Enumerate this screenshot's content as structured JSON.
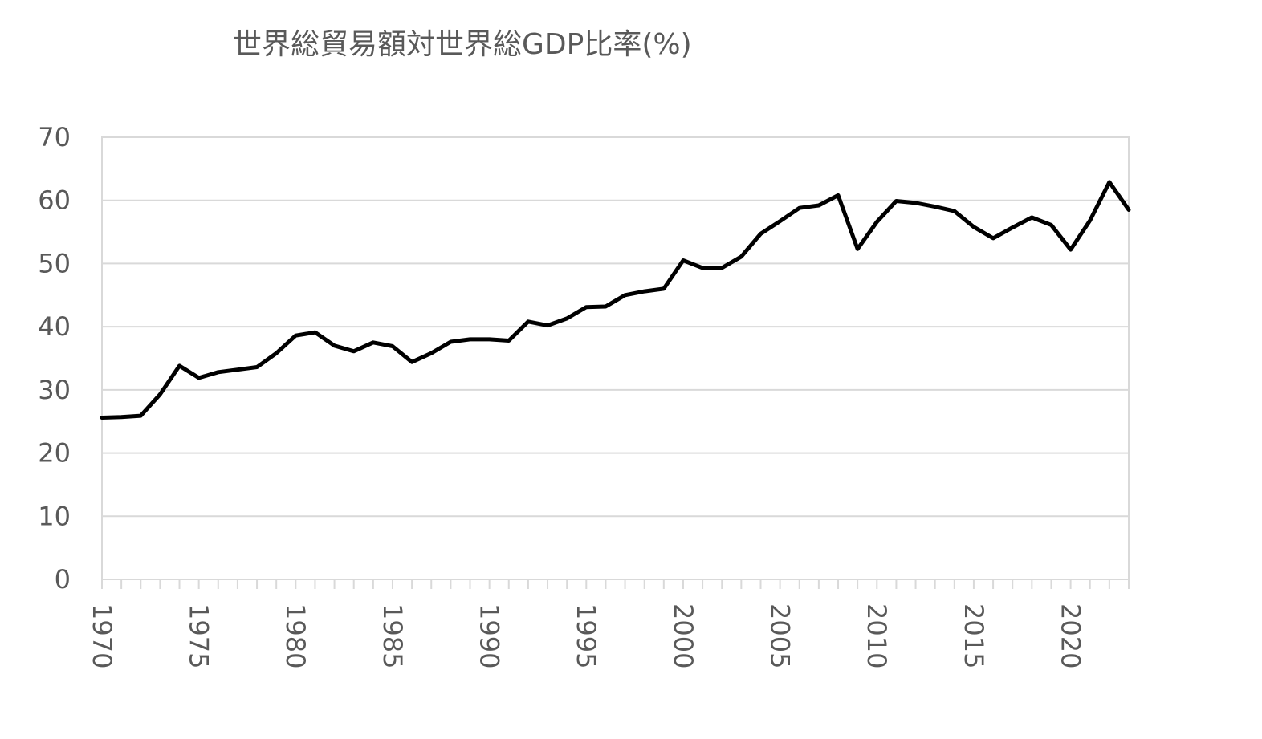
{
  "chart_data": {
    "type": "line",
    "title": "世界総貿易額対世界総GDP比率(%)",
    "xlabel": "",
    "ylabel": "",
    "xlim": [
      1970,
      2023
    ],
    "ylim": [
      0,
      70
    ],
    "yticks": [
      "0",
      "10",
      "20",
      "30",
      "40",
      "50",
      "60",
      "70"
    ],
    "xtick_labels": [
      "1970",
      "1975",
      "1980",
      "1985",
      "1990",
      "1995",
      "2000",
      "2005",
      "2010",
      "2015",
      "2020"
    ],
    "grid": true,
    "legend": "none",
    "line_color": "#000000",
    "x": [
      1970,
      1971,
      1972,
      1973,
      1974,
      1975,
      1976,
      1977,
      1978,
      1979,
      1980,
      1981,
      1982,
      1983,
      1984,
      1985,
      1986,
      1987,
      1988,
      1989,
      1990,
      1991,
      1992,
      1993,
      1994,
      1995,
      1996,
      1997,
      1998,
      1999,
      2000,
      2001,
      2002,
      2003,
      2004,
      2005,
      2006,
      2007,
      2008,
      2009,
      2010,
      2011,
      2012,
      2013,
      2014,
      2015,
      2016,
      2017,
      2018,
      2019,
      2020,
      2021,
      2022,
      2023
    ],
    "series": [
      {
        "values": [
          25.6,
          25.7,
          25.9,
          29.3,
          33.8,
          31.9,
          32.8,
          33.2,
          33.6,
          35.8,
          38.6,
          39.1,
          37.0,
          36.1,
          37.5,
          36.9,
          34.4,
          35.8,
          37.6,
          38.0,
          38.0,
          37.8,
          40.8,
          40.2,
          41.3,
          43.1,
          43.2,
          45.0,
          45.6,
          46.0,
          50.5,
          49.3,
          49.3,
          51.1,
          54.7,
          56.7,
          58.8,
          59.2,
          60.8,
          52.3,
          56.6,
          59.9,
          59.6,
          59.0,
          58.3,
          55.8,
          54.0,
          55.7,
          57.3,
          56.1,
          52.2,
          56.8,
          62.9,
          58.5
        ]
      }
    ]
  }
}
